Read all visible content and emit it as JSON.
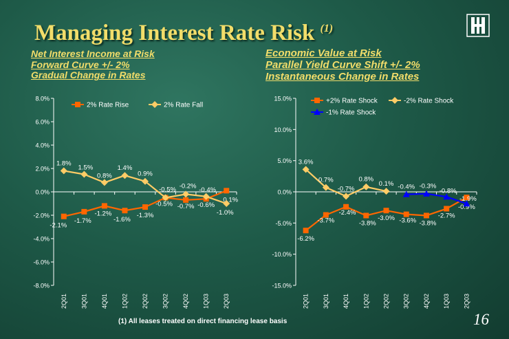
{
  "slide": {
    "title": "Managing Interest Rate Risk",
    "title_note": "(1)",
    "footnote": "(1) All leases treated on direct financing lease basis",
    "page_number": "16",
    "logo_icon": "bank-logo-icon",
    "colors": {
      "title": "#f2dd6a",
      "orange": "#ff6600",
      "yellow": "#ffcc66",
      "blue": "#0000ff"
    }
  },
  "left_subtitle": [
    "Net Interest Income at Risk",
    "Forward Curve +/- 2%",
    "Gradual Change in Rates"
  ],
  "right_subtitle": [
    "Economic Value at Risk",
    "Parallel Yield Curve Shift +/- 2%",
    "Instantaneous Change in Rates"
  ],
  "chart_data": [
    {
      "type": "line",
      "categories": [
        "2Q01",
        "3Q01",
        "4Q01",
        "1Q02",
        "2Q02",
        "3Q02",
        "4Q02",
        "1Q03",
        "2Q03"
      ],
      "ylim": [
        -8.0,
        8.0
      ],
      "yticks": [
        -8.0,
        -6.0,
        -4.0,
        -2.0,
        0.0,
        2.0,
        4.0,
        6.0,
        8.0
      ],
      "tick_labels": [
        "-8.0%",
        "-6.0%",
        "-4.0%",
        "-2.0%",
        "0.0%",
        "2.0%",
        "4.0%",
        "6.0%",
        "8.0%"
      ],
      "grid": false,
      "legend": "top",
      "series": [
        {
          "name": "2% Rate Rise",
          "color": "#ff6600",
          "marker": "square",
          "values": [
            -2.1,
            -1.7,
            -1.2,
            -1.6,
            -1.3,
            -0.5,
            -0.7,
            -0.6,
            0.1
          ],
          "labels": [
            "-2.1%",
            "-1.7%",
            "-1.2%",
            "-1.6%",
            "-1.3%",
            "-0.5%",
            "-0.7%",
            "-0.6%",
            "0.1%"
          ]
        },
        {
          "name": "2% Rate Fall",
          "color": "#ffcc66",
          "marker": "diamond",
          "values": [
            1.8,
            1.5,
            0.8,
            1.4,
            0.9,
            -0.5,
            -0.2,
            -0.4,
            -1.0
          ],
          "labels": [
            "1.8%",
            "1.5%",
            "0.8%",
            "1.4%",
            "0.9%",
            "-0.5%",
            "-0.2%",
            "-0.4%",
            "-1.0%"
          ]
        }
      ]
    },
    {
      "type": "line",
      "categories": [
        "2Q01",
        "3Q01",
        "4Q01",
        "1Q02",
        "2Q02",
        "3Q02",
        "4Q02",
        "1Q03",
        "2Q03"
      ],
      "ylim": [
        -15.0,
        15.0
      ],
      "yticks": [
        -15.0,
        -10.0,
        -5.0,
        0.0,
        5.0,
        10.0,
        15.0
      ],
      "tick_labels": [
        "-15.0%",
        "-10.0%",
        "-5.0%",
        "0.0%",
        "5.0%",
        "10.0%",
        "15.0%"
      ],
      "grid": false,
      "legend": "top",
      "series": [
        {
          "name": "+2% Rate Shock",
          "color": "#ff6600",
          "marker": "square",
          "values": [
            -6.2,
            -3.7,
            -2.4,
            -3.8,
            -3.0,
            -3.6,
            -3.8,
            -2.7,
            -0.9
          ],
          "labels": [
            "-6.2%",
            "-3.7%",
            "-2.4%",
            "-3.8%",
            "-3.0%",
            "-3.6%",
            "-3.8%",
            "-2.7%",
            "-0.9%"
          ]
        },
        {
          "name": "-2% Rate Shock",
          "color": "#ffcc66",
          "marker": "diamond",
          "values": [
            3.6,
            0.7,
            -0.7,
            0.8,
            0.1,
            null,
            null,
            null,
            null
          ],
          "labels": [
            "3.6%",
            "0.7%",
            "-0.7%",
            "0.8%",
            "0.1%",
            null,
            null,
            null,
            null
          ]
        },
        {
          "name": "-1% Rate Shock",
          "color": "#0000ff",
          "marker": "triangle",
          "values": [
            null,
            null,
            null,
            null,
            null,
            -0.4,
            -0.3,
            -0.8,
            -1.9
          ],
          "labels": [
            null,
            null,
            null,
            null,
            null,
            "-0.4%",
            "-0.3%",
            "-0.8%",
            "-1.9%"
          ]
        }
      ]
    }
  ]
}
